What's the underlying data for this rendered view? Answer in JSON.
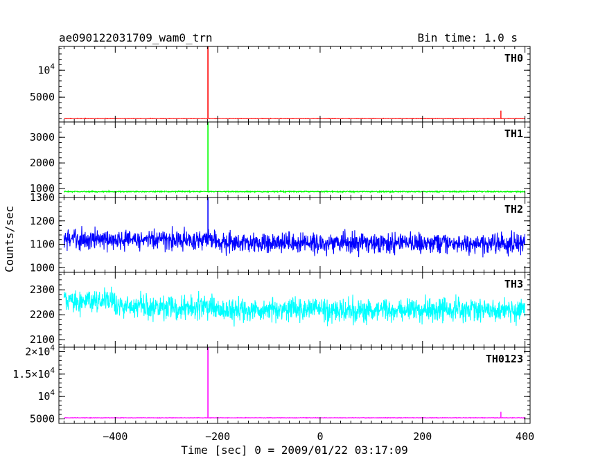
{
  "chart_data": {
    "type": "line",
    "title": "ae090122031709_wam0_trn",
    "bin_time_label": "Bin time: 1.0 s",
    "xlabel": "Time [sec] 0 = 2009/01/22 03:17:09",
    "ylabel": "Counts/sec",
    "x_range": [
      -510,
      410
    ],
    "x_ticks": [
      -400,
      -200,
      0,
      200,
      400
    ],
    "x_tick_labels": [
      "−400",
      "−200",
      "0",
      "200",
      "400"
    ],
    "panels": [
      {
        "name": "TH0",
        "color": "#ff0000",
        "ylim": [
          400,
          14400
        ],
        "y_ticks": [
          5000,
          10000
        ],
        "y_tick_labels": [
          {
            "base": "5000",
            "sup": ""
          },
          {
            "base": "10",
            "sup": "4"
          }
        ],
        "baseline": 1050,
        "noise": 50,
        "spike_x": -219,
        "spike_value": 14400,
        "secondary_spike_x": 353,
        "secondary_spike_value": 2500,
        "x_start": -500,
        "x_end": 400
      },
      {
        "name": "TH1",
        "color": "#00ff00",
        "ylim": [
          650,
          3600
        ],
        "y_ticks": [
          1000,
          2000,
          3000
        ],
        "y_tick_labels": [
          {
            "base": "1000",
            "sup": ""
          },
          {
            "base": "2000",
            "sup": ""
          },
          {
            "base": "3000",
            "sup": ""
          }
        ],
        "baseline": 880,
        "noise": 28,
        "spike_x": -219,
        "spike_value": 3600,
        "x_start": -500,
        "x_end": 400
      },
      {
        "name": "TH2",
        "color": "#0000ff",
        "ylim": [
          980,
          1300
        ],
        "y_ticks": [
          1000,
          1100,
          1200,
          1300
        ],
        "y_tick_labels": [
          {
            "base": "1000",
            "sup": ""
          },
          {
            "base": "1100",
            "sup": ""
          },
          {
            "base": "1200",
            "sup": ""
          },
          {
            "base": "1300",
            "sup": ""
          }
        ],
        "baseline": 1105,
        "noise": 55,
        "spike_x": -219,
        "spike_value": 1300,
        "x_start": -500,
        "x_end": 400
      },
      {
        "name": "TH3",
        "color": "#00ffff",
        "ylim": [
          2070,
          2370
        ],
        "y_ticks": [
          2100,
          2200,
          2300
        ],
        "y_tick_labels": [
          {
            "base": "2100",
            "sup": ""
          },
          {
            "base": "2200",
            "sup": ""
          },
          {
            "base": "2300",
            "sup": ""
          }
        ],
        "baseline": 2220,
        "noise": 60,
        "x_start": -500,
        "x_end": 400
      },
      {
        "name": "TH0123",
        "color": "#ff00ff",
        "ylim": [
          4000,
          21000
        ],
        "y_ticks": [
          5000,
          10000,
          15000,
          20000
        ],
        "y_tick_labels": [
          {
            "base": "5000",
            "sup": ""
          },
          {
            "base": "10",
            "sup": "4"
          },
          {
            "base": "1.5×10",
            "sup": "4"
          },
          {
            "base": "2×10",
            "sup": "4"
          }
        ],
        "baseline": 5250,
        "noise": 60,
        "spike_x": -219,
        "spike_value": 21000,
        "secondary_spike_x": 353,
        "secondary_spike_value": 6600,
        "x_start": -500,
        "x_end": 400
      }
    ]
  }
}
